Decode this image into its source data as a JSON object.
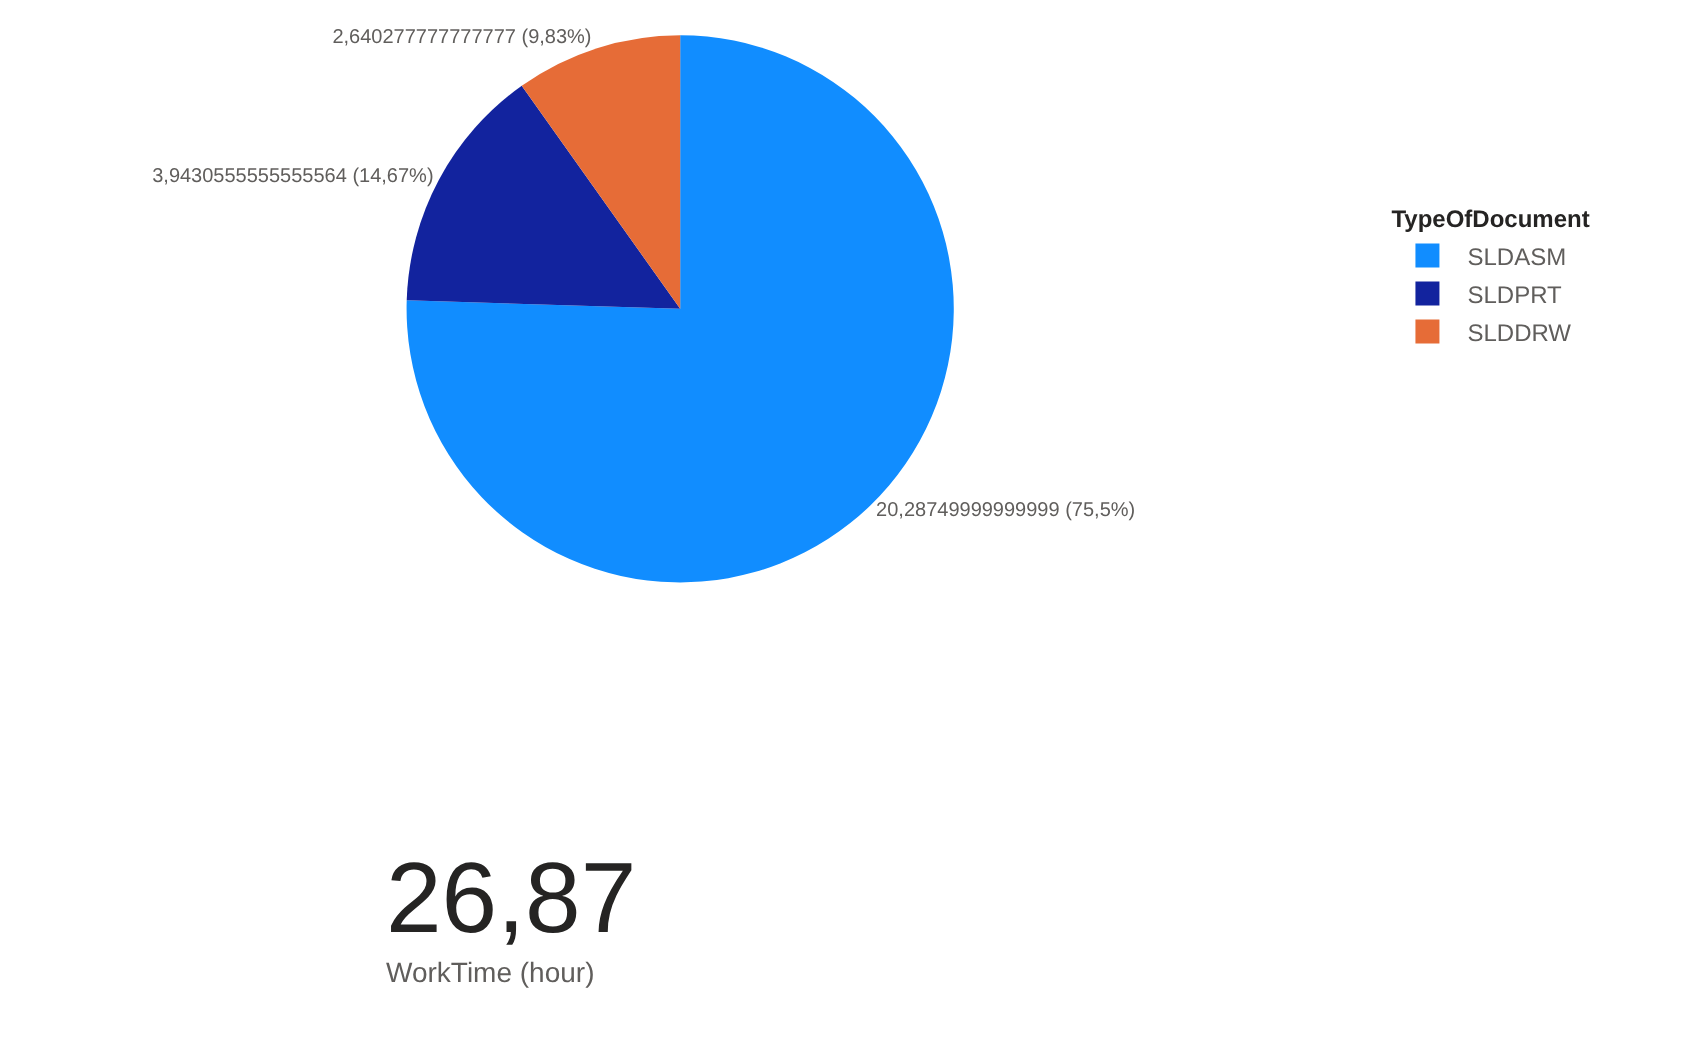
{
  "chart_data": [
    {
      "type": "pie",
      "legend_title": "TypeOfDocument",
      "legend": "right",
      "categories": [
        "SLDASM",
        "SLDPRT",
        "SLDDRW"
      ],
      "values": [
        75.5,
        14.67,
        9.83
      ],
      "colors": [
        "#118dff",
        "#12239e",
        "#e66c37"
      ],
      "value_labels": [
        "20,28749999999999 (75,5%)",
        "3,9430555555555564 (14,67%)",
        "2,640277777777777 (9,83%)"
      ]
    },
    {
      "type": "other",
      "annotations": [
        "26,87",
        "WorkTime (hour)"
      ]
    }
  ]
}
